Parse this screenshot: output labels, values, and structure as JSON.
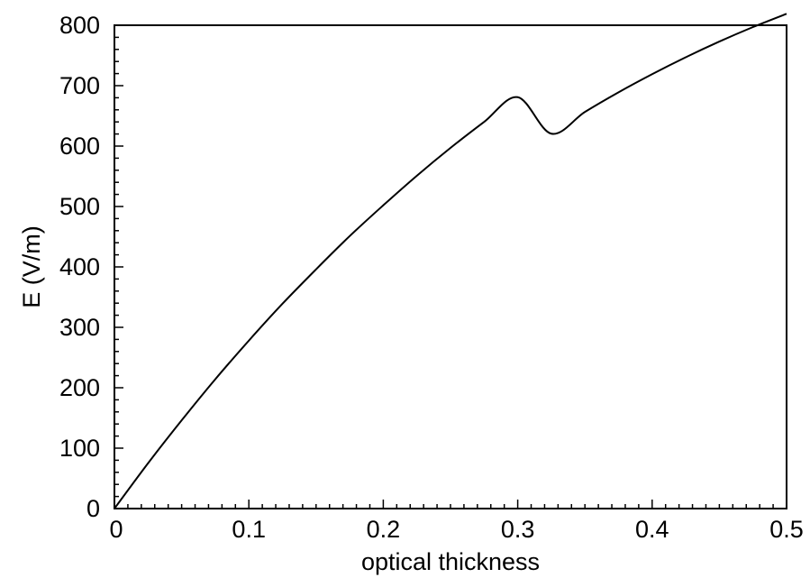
{
  "chart_data": {
    "type": "line",
    "title": "",
    "xlabel": "optical thickness",
    "ylabel": "E (V/m)",
    "xlim": [
      0,
      0.5
    ],
    "ylim": [
      0,
      800
    ],
    "xticks": [
      0,
      0.1,
      0.2,
      0.3,
      0.4,
      0.5
    ],
    "xtick_labels": [
      "0",
      "0.1",
      "0.2",
      "0.3",
      "0.4",
      "0.5"
    ],
    "yticks": [
      0,
      100,
      200,
      300,
      400,
      500,
      600,
      700,
      800
    ],
    "ytick_labels": [
      "0",
      "100",
      "200",
      "300",
      "400",
      "500",
      "600",
      "700",
      "800"
    ],
    "grid": false,
    "line_color": "#000000",
    "series": [
      {
        "x": [
          0,
          0.025,
          0.05,
          0.075,
          0.1,
          0.125,
          0.15,
          0.175,
          0.2,
          0.225,
          0.25,
          0.275,
          0.3,
          0.325,
          0.35,
          0.375,
          0.4,
          0.425,
          0.45,
          0.475,
          0.5
        ],
        "y": [
          0,
          75,
          146,
          214,
          278,
          339,
          396,
          451,
          502,
          551,
          597,
          640,
          681,
          620.5,
          656.5,
          689,
          719,
          747,
          773,
          797,
          819
        ]
      }
    ]
  }
}
